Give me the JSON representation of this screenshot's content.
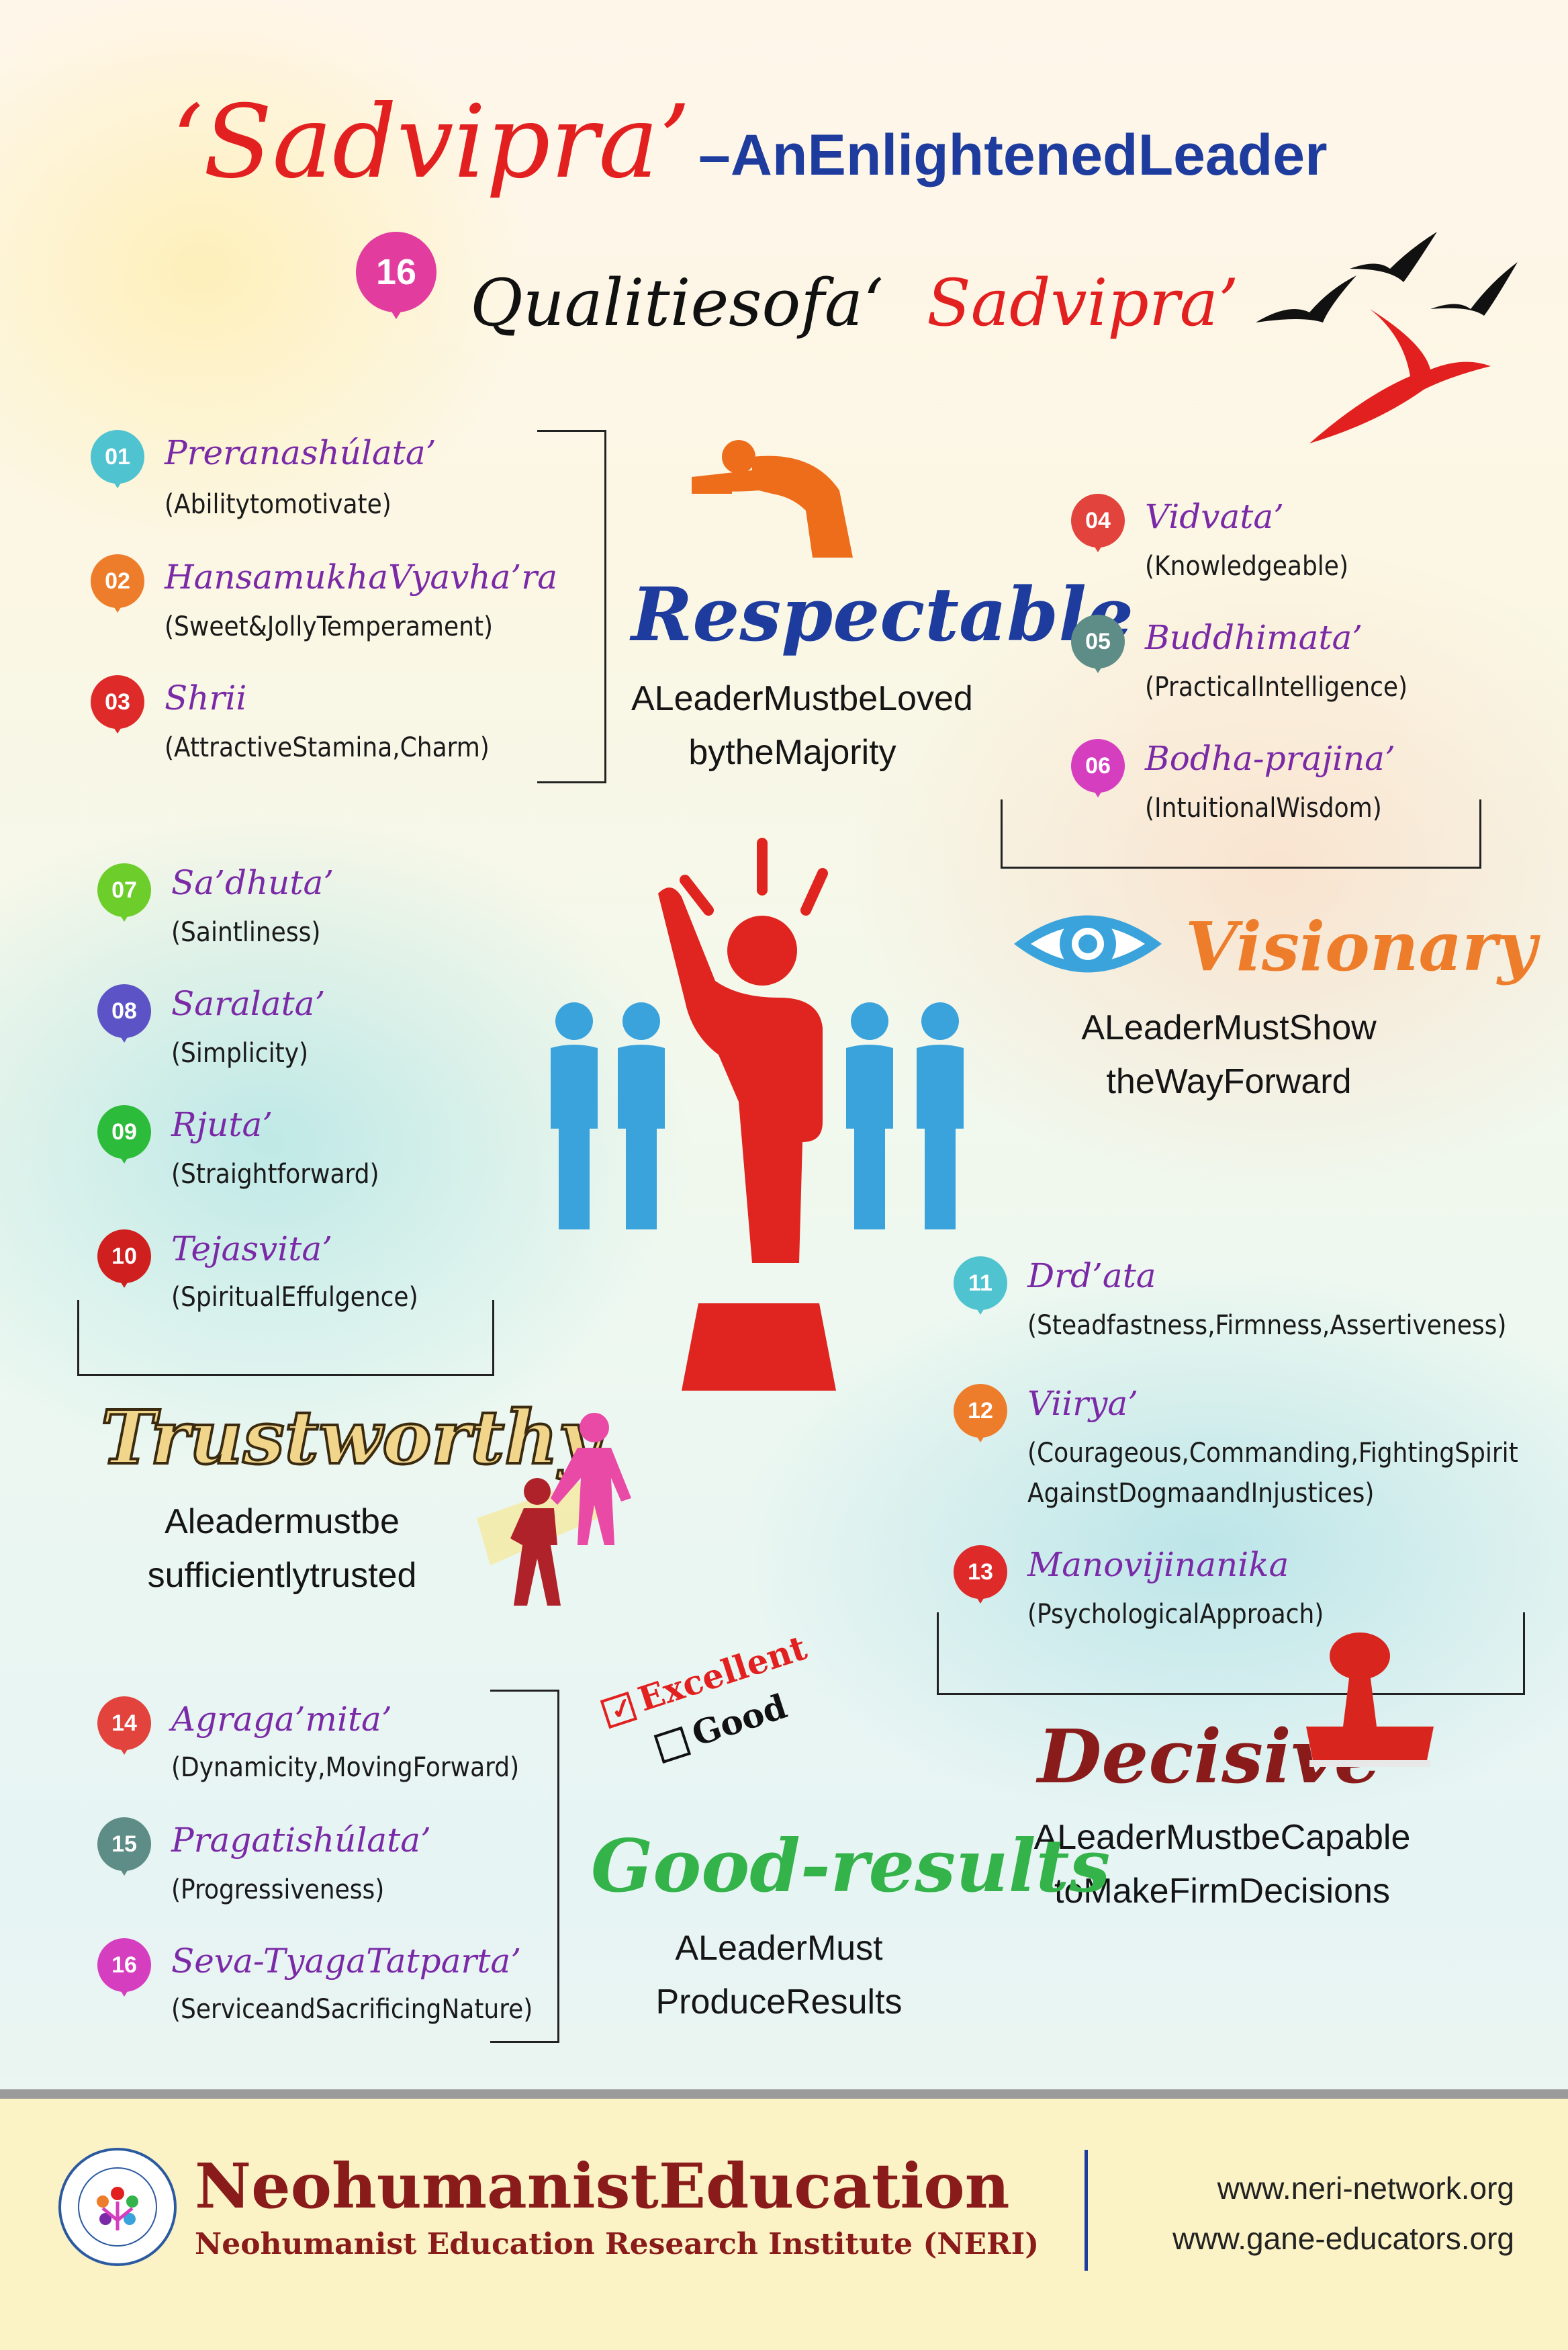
{
  "title": {
    "main": "‘Sadvipra’",
    "rest": "–AnEnlightenedLeader"
  },
  "subtitle": {
    "badge": "16",
    "part1": "Qualitiesofa‘",
    "part2": "Sadvipra’"
  },
  "qualities": [
    {
      "num": "01",
      "name": "Preranashúlata’",
      "desc": "(Abilitytomotivate)",
      "color": "#4fc3cf"
    },
    {
      "num": "02",
      "name": "HansamukhaVyavha’ra",
      "desc": "(Sweet&JollyTemperament)",
      "color": "#ee7d2b"
    },
    {
      "num": "03",
      "name": "Shrii",
      "desc": "(AttractiveStamina,Charm)",
      "color": "#df2a2a"
    },
    {
      "num": "04",
      "name": "Vidvata’",
      "desc": "(Knowledgeable)",
      "color": "#e2433d"
    },
    {
      "num": "05",
      "name": "Buddhimata’",
      "desc": "(PracticalIntelligence)",
      "color": "#5e8c86"
    },
    {
      "num": "06",
      "name": "Bodha-prajina’",
      "desc": "(IntuitionalWisdom)",
      "color": "#d63ec0"
    },
    {
      "num": "07",
      "name": "Sa’dhuta’",
      "desc": "(Saintliness)",
      "color": "#6dcd2a"
    },
    {
      "num": "08",
      "name": "Saralata’",
      "desc": "(Simplicity)",
      "color": "#5b53c6"
    },
    {
      "num": "09",
      "name": "Rjuta’",
      "desc": "(Straightforward)",
      "color": "#2dbb3b"
    },
    {
      "num": "10",
      "name": "Tejasvita’",
      "desc": "(SpiritualEffulgence)",
      "color": "#cf1f1f"
    },
    {
      "num": "11",
      "name": "Drd’ata",
      "desc": "(Steadfastness,Firmness,Assertiveness)",
      "color": "#4fc3cf"
    },
    {
      "num": "12",
      "name": "Viirya’",
      "desc": "(Courageous,Commanding,FightingSpirit",
      "desc2": "AgainstDogmaandInjustices)",
      "color": "#ee7d2b"
    },
    {
      "num": "13",
      "name": "Manovijinanika",
      "desc": "(PsychologicalApproach)",
      "color": "#df2a2a"
    },
    {
      "num": "14",
      "name": "Agraga’mita’",
      "desc": "(Dynamicity,MovingForward)",
      "color": "#e2433d"
    },
    {
      "num": "15",
      "name": "Pragatishúlata’",
      "desc": "(Progressiveness)",
      "color": "#5e8c86"
    },
    {
      "num": "16",
      "name": "Seva-TyagaTatparta’",
      "desc": "(ServiceandSacrificingNature)",
      "color": "#d63ec0"
    }
  ],
  "categories": {
    "respectable": {
      "title": "Respectable",
      "line1": "ALeaderMustbeLoved",
      "line2": "bytheMajority",
      "color": "#1e3c9e"
    },
    "visionary": {
      "title": "Visionary",
      "line1": "ALeaderMustShow",
      "line2": "theWayForward",
      "color": "#ee7d2b"
    },
    "trustworthy": {
      "title": "Trustworthy",
      "line1": "Aleadermustbe",
      "line2": "sufficientlytrusted",
      "color": "#f1d58a"
    },
    "decisive": {
      "title": "Decisive",
      "line1": "ALeaderMustbeCapable",
      "line2": "toMakeFirmDecisions",
      "color": "#8a1b1b"
    },
    "good_results": {
      "title": "Good-results",
      "line1": "ALeaderMust",
      "line2": "ProduceResults",
      "color": "#33b34a"
    }
  },
  "checklist": {
    "excellent": "Excellent",
    "good": "Good"
  },
  "footer": {
    "org": "NeohumanistEducation",
    "institute": "Neohumanist Education Research Institute (NERI)",
    "url1": "www.neri-network.org",
    "url2": "www.gane-educators.org"
  },
  "colors": {
    "accent_red": "#e2201f",
    "accent_blue": "#1e3c9e",
    "figure_red": "#e0241f",
    "figure_blue": "#3aa3dc"
  }
}
